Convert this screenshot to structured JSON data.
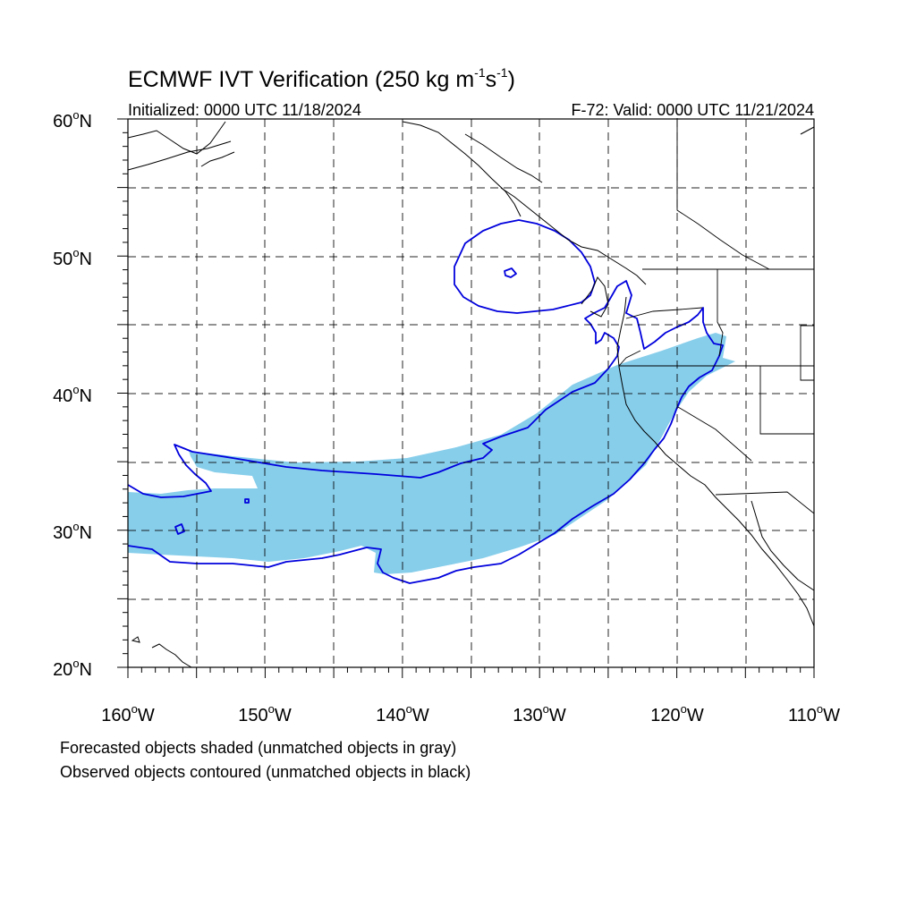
{
  "title": {
    "main": "ECMWF IVT Verification (250 kg m",
    "sup1": "-1",
    "mid": "s",
    "sup2": "-1",
    "end": ")"
  },
  "initialized": "Initialized: 0000 UTC 11/18/2024",
  "valid": "F-72: Valid: 0000 UTC 11/21/2024",
  "lat_labels": [
    {
      "deg": "60",
      "suffix": "N"
    },
    {
      "deg": "50",
      "suffix": "N"
    },
    {
      "deg": "40",
      "suffix": "N"
    },
    {
      "deg": "30",
      "suffix": "N"
    },
    {
      "deg": "20",
      "suffix": "N"
    }
  ],
  "lon_labels": [
    {
      "deg": "160",
      "suffix": "W"
    },
    {
      "deg": "150",
      "suffix": "W"
    },
    {
      "deg": "140",
      "suffix": "W"
    },
    {
      "deg": "130",
      "suffix": "W"
    },
    {
      "deg": "120",
      "suffix": "W"
    },
    {
      "deg": "110",
      "suffix": "W"
    }
  ],
  "caption": {
    "line1": "Forecasted objects shaded (unmatched objects in gray)",
    "line2": "Observed objects contoured (unmatched objects in black)"
  },
  "colors": {
    "forecast_fill": "#87ceeb",
    "observed_contour": "#0000dd"
  },
  "map_extent": {
    "lon_range": [
      -160,
      -110
    ],
    "lat_range": [
      20,
      60
    ]
  }
}
